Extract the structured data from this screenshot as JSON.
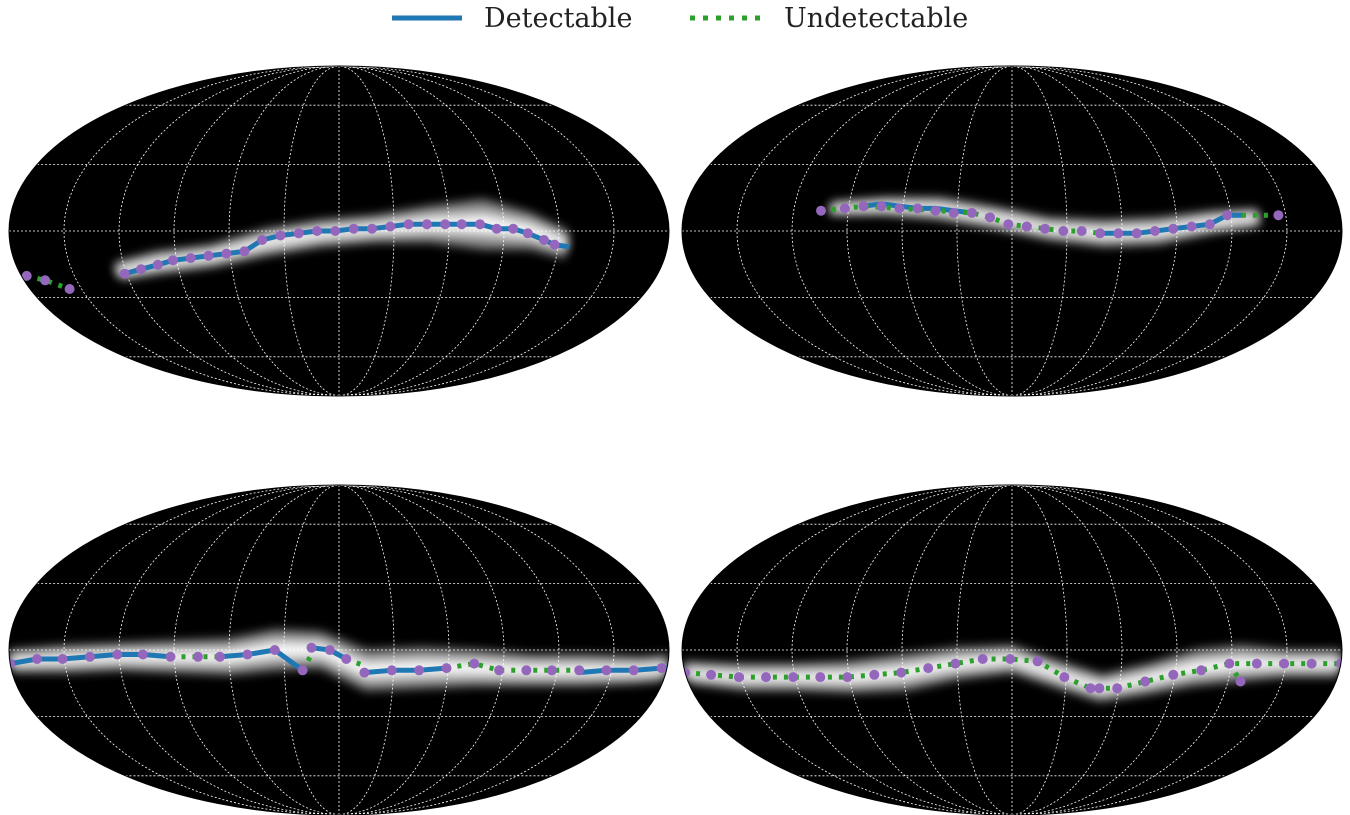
{
  "legend": {
    "detectable_label": "Detectable",
    "undetectable_label": "Undetectable",
    "detectable_color": "#1f77b4",
    "undetectable_color": "#2ca02c"
  },
  "colors": {
    "background": "#000000",
    "grid": "#ffffff",
    "marker": "#9467bd",
    "emission": "#ffffff"
  },
  "chart_data": [
    {
      "type": "line",
      "projection": "mollweide",
      "x_range_deg": [
        -180,
        180
      ],
      "y_range_deg": [
        -90,
        90
      ],
      "grid": true,
      "legend_position": "top-center",
      "series": [
        {
          "name": "Undetectable",
          "style": "dotted",
          "x": [
            -177,
            -168,
            -157
          ],
          "y": [
            -20,
            -22,
            -26
          ]
        },
        {
          "name": "Detectable",
          "style": "solid",
          "x": [
            -121,
            -111,
            -101,
            -92,
            -82,
            -72,
            -62,
            -52,
            -42,
            -32,
            -22,
            -12,
            -2,
            8,
            18,
            28,
            38,
            48,
            58,
            67,
            77,
            86,
            95,
            103,
            112,
            118,
            126
          ],
          "y": [
            -19,
            -17,
            -15,
            -13,
            -12,
            -11,
            -10,
            -9,
            -4,
            -2,
            -1,
            0,
            0,
            1,
            1,
            2,
            3,
            3,
            3,
            3,
            3,
            1,
            1,
            -1,
            -4,
            -6,
            -7
          ]
        }
      ],
      "emission_band": {
        "x": [
          -125,
          -100,
          -70,
          -40,
          -10,
          20,
          50,
          80,
          105,
          125
        ],
        "y": [
          -18,
          -14,
          -11,
          -5,
          -1,
          1,
          3,
          3,
          0,
          -6
        ],
        "halfwidth_deg": [
          4,
          5,
          5,
          6,
          6,
          6,
          8,
          11,
          8,
          6
        ]
      },
      "dots_x": [
        -177,
        -168,
        -157,
        -121,
        -111,
        -101,
        -92,
        -82,
        -72,
        -62,
        -52,
        -42,
        -32,
        -22,
        -12,
        -2,
        8,
        18,
        28,
        38,
        48,
        58,
        67,
        77,
        86,
        95,
        103,
        112,
        118
      ],
      "dots_y": [
        -20,
        -22,
        -26,
        -19,
        -17,
        -15,
        -13,
        -12,
        -11,
        -10,
        -9,
        -4,
        -2,
        -1,
        0,
        0,
        1,
        1,
        2,
        3,
        3,
        3,
        3,
        3,
        1,
        1,
        -1,
        -4,
        -6
      ]
    },
    {
      "type": "line",
      "projection": "mollweide",
      "x_range_deg": [
        -180,
        180
      ],
      "y_range_deg": [
        -90,
        90
      ],
      "grid": true,
      "series": [
        {
          "name": "Detectable",
          "style": "solid",
          "x": [
            -82,
            -72,
            -62,
            -52,
            -42,
            -32,
            -22
          ],
          "y": [
            11,
            12,
            11,
            10,
            10,
            9,
            8
          ]
        },
        {
          "name": "Undetectable",
          "style": "dotted",
          "x": [
            -105,
            -92,
            -82,
            -22,
            -12,
            -2,
            8,
            18,
            28,
            38,
            48
          ],
          "y": [
            9,
            10,
            11,
            8,
            6,
            3,
            2,
            1,
            0,
            0,
            -1
          ]
        },
        {
          "name": "Detectable",
          "style": "solid",
          "x": [
            48,
            58,
            68,
            78,
            88,
            98,
            108,
            118,
            126
          ],
          "y": [
            -1,
            -1,
            -1,
            0,
            1,
            2,
            3,
            7,
            7
          ]
        },
        {
          "name": "Undetectable",
          "style": "dotted",
          "x": [
            126,
            140,
            146
          ],
          "y": [
            7,
            7,
            7
          ]
        }
      ],
      "emission_band": {
        "x": [
          -100,
          -70,
          -40,
          -10,
          20,
          50,
          80,
          110,
          135
        ],
        "y": [
          10,
          11,
          10,
          6,
          1,
          -1,
          0,
          4,
          6
        ],
        "halfwidth_deg": [
          3,
          4,
          5,
          5,
          5,
          6,
          6,
          5,
          4
        ]
      },
      "dots_x": [
        -105,
        -92,
        -82,
        -72,
        -62,
        -52,
        -42,
        -32,
        -22,
        -12,
        -2,
        8,
        18,
        28,
        38,
        48,
        58,
        68,
        78,
        88,
        98,
        108,
        118,
        146
      ],
      "dots_y": [
        9,
        10,
        11,
        11,
        10,
        10,
        9,
        8,
        8,
        6,
        3,
        2,
        1,
        0,
        0,
        -1,
        -1,
        -1,
        0,
        1,
        2,
        3,
        7,
        7
      ]
    },
    {
      "type": "line",
      "projection": "mollweide",
      "x_range_deg": [
        -180,
        180
      ],
      "y_range_deg": [
        -90,
        90
      ],
      "grid": true,
      "series": [
        {
          "name": "Detectable",
          "style": "solid",
          "x": [
            -180,
            -165,
            -151,
            -136,
            -121,
            -107,
            -92
          ],
          "y": [
            -6,
            -4,
            -4,
            -3,
            -2,
            -2,
            -3
          ]
        },
        {
          "name": "Undetectable",
          "style": "dotted",
          "x": [
            -92,
            -77,
            -65
          ],
          "y": [
            -3,
            -3,
            -3
          ]
        },
        {
          "name": "Detectable",
          "style": "solid",
          "x": [
            -65,
            -50,
            -35,
            -20
          ],
          "y": [
            -3,
            -2,
            0,
            -9
          ]
        },
        {
          "name": "Undetectable",
          "style": "dotted",
          "x": [
            -20,
            -15
          ],
          "y": [
            -9,
            -2
          ]
        },
        {
          "name": "Detectable",
          "style": "solid",
          "x": [
            -15,
            -5,
            4
          ],
          "y": [
            1,
            0,
            -4
          ]
        },
        {
          "name": "Undetectable",
          "style": "dotted",
          "x": [
            4,
            14
          ],
          "y": [
            -4,
            -7
          ]
        },
        {
          "name": "Detectable",
          "style": "solid",
          "x": [
            14,
            29,
            44,
            59
          ],
          "y": [
            -10,
            -9,
            -9,
            -8
          ]
        },
        {
          "name": "Undetectable",
          "style": "dotted",
          "x": [
            59,
            74,
            88,
            103,
            117,
            132
          ],
          "y": [
            -8,
            -6,
            -9,
            -9,
            -9,
            -9
          ]
        },
        {
          "name": "Detectable",
          "style": "solid",
          "x": [
            132,
            147,
            162,
            177,
            180
          ],
          "y": [
            -10,
            -9,
            -9,
            -8,
            -8
          ]
        }
      ],
      "emission_band": {
        "x": [
          -180,
          -150,
          -120,
          -90,
          -60,
          -35,
          -10,
          15,
          45,
          75,
          105,
          135,
          165,
          180
        ],
        "y": [
          -5,
          -4,
          -3,
          -3,
          -3,
          0,
          0,
          -9,
          -8,
          -8,
          -9,
          -9,
          -9,
          -8
        ],
        "halfwidth_deg": [
          5,
          6,
          6,
          7,
          8,
          9,
          8,
          9,
          9,
          8,
          7,
          7,
          6,
          6
        ]
      },
      "dots_x": [
        -180,
        -165,
        -151,
        -136,
        -121,
        -107,
        -92,
        -77,
        -65,
        -50,
        -35,
        -20,
        -15,
        -5,
        4,
        14,
        29,
        44,
        59,
        74,
        88,
        103,
        117,
        132,
        147,
        162,
        177
      ],
      "dots_y": [
        -6,
        -4,
        -4,
        -3,
        -2,
        -2,
        -3,
        -3,
        -3,
        -2,
        0,
        -9,
        1,
        0,
        -4,
        -10,
        -9,
        -9,
        -8,
        -6,
        -9,
        -9,
        -9,
        -9,
        -9,
        -9,
        -8
      ]
    },
    {
      "type": "line",
      "projection": "mollweide",
      "x_range_deg": [
        -180,
        180
      ],
      "y_range_deg": [
        -90,
        90
      ],
      "grid": true,
      "series": [
        {
          "name": "Undetectable",
          "style": "dotted",
          "x": [
            -180,
            -166,
            -151,
            -136,
            -121,
            -106,
            -91,
            -76,
            -61,
            -46,
            -31,
            -16,
            -1,
            14,
            29,
            44,
            49,
            59,
            74,
            89,
            104,
            119,
            134,
            149,
            164,
            180
          ],
          "y": [
            -10,
            -11,
            -12,
            -12,
            -12,
            -12,
            -12,
            -11,
            -10,
            -8,
            -6,
            -4,
            -4,
            -5,
            -12,
            -17,
            -17,
            -17,
            -14,
            -11,
            -9,
            -6,
            -6,
            -6,
            -6,
            -6
          ]
        },
        {
          "name": "Undetectable",
          "style": "dotted",
          "x": [
            119,
            127
          ],
          "y": [
            -6,
            -14
          ]
        }
      ],
      "emission_band": {
        "x": [
          -180,
          -150,
          -120,
          -90,
          -60,
          -30,
          0,
          30,
          50,
          75,
          100,
          125,
          150,
          180
        ],
        "y": [
          -10,
          -12,
          -12,
          -12,
          -10,
          -6,
          -4,
          -12,
          -17,
          -13,
          -8,
          -6,
          -6,
          -6
        ],
        "halfwidth_deg": [
          5,
          6,
          6,
          7,
          8,
          7,
          6,
          6,
          6,
          7,
          8,
          8,
          6,
          6
        ]
      },
      "dots_x": [
        -180,
        -166,
        -151,
        -136,
        -121,
        -106,
        -91,
        -76,
        -61,
        -46,
        -31,
        -16,
        -1,
        14,
        29,
        44,
        49,
        59,
        74,
        89,
        104,
        119,
        127,
        134,
        149,
        164,
        180
      ],
      "dots_y": [
        -10,
        -11,
        -12,
        -12,
        -12,
        -12,
        -12,
        -11,
        -10,
        -8,
        -6,
        -4,
        -4,
        -5,
        -12,
        -17,
        -17,
        -17,
        -14,
        -11,
        -9,
        -6,
        -14,
        -6,
        -6,
        -6,
        -6
      ]
    }
  ]
}
